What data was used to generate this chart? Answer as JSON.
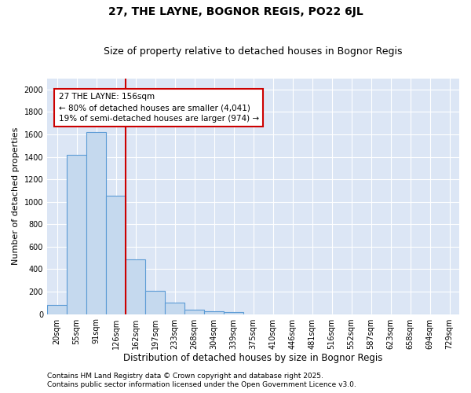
{
  "title": "27, THE LAYNE, BOGNOR REGIS, PO22 6JL",
  "subtitle": "Size of property relative to detached houses in Bognor Regis",
  "xlabel": "Distribution of detached houses by size in Bognor Regis",
  "ylabel": "Number of detached properties",
  "categories": [
    "20sqm",
    "55sqm",
    "91sqm",
    "126sqm",
    "162sqm",
    "197sqm",
    "233sqm",
    "268sqm",
    "304sqm",
    "339sqm",
    "375sqm",
    "410sqm",
    "446sqm",
    "481sqm",
    "516sqm",
    "552sqm",
    "587sqm",
    "623sqm",
    "658sqm",
    "694sqm",
    "729sqm"
  ],
  "values": [
    80,
    1420,
    1620,
    1055,
    490,
    205,
    100,
    38,
    25,
    18,
    0,
    0,
    0,
    0,
    0,
    0,
    0,
    0,
    0,
    0,
    0
  ],
  "bar_color": "#c5d9ee",
  "bar_edge_color": "#5b9bd5",
  "vline_color": "#cc0000",
  "annotation_text": "27 THE LAYNE: 156sqm\n← 80% of detached houses are smaller (4,041)\n19% of semi-detached houses are larger (974) →",
  "annotation_box_facecolor": "white",
  "annotation_box_edgecolor": "#cc0000",
  "ylim": [
    0,
    2100
  ],
  "yticks": [
    0,
    200,
    400,
    600,
    800,
    1000,
    1200,
    1400,
    1600,
    1800,
    2000
  ],
  "bg_color": "#dce6f5",
  "grid_color": "white",
  "footer_line1": "Contains HM Land Registry data © Crown copyright and database right 2025.",
  "footer_line2": "Contains public sector information licensed under the Open Government Licence v3.0.",
  "title_fontsize": 10,
  "subtitle_fontsize": 9,
  "tick_fontsize": 7,
  "ylabel_fontsize": 8,
  "xlabel_fontsize": 8.5,
  "footer_fontsize": 6.5,
  "annot_fontsize": 7.5,
  "vline_xindex": 4
}
